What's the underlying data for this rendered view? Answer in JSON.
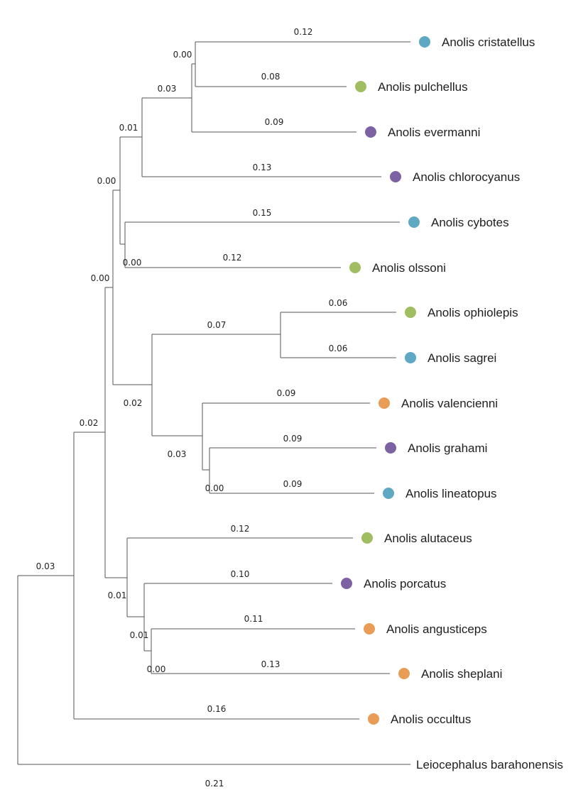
{
  "tree": {
    "taxa": [
      {
        "name": "Anolis cristatellus",
        "branch_length": "0.12",
        "color": "#5fa8c4"
      },
      {
        "name": "Anolis pulchellus",
        "branch_length": "0.08",
        "color": "#a0bd62"
      },
      {
        "name": "Anolis evermanni",
        "branch_length": "0.09",
        "color": "#7d62a3"
      },
      {
        "name": "Anolis chlorocyanus",
        "branch_length": "0.13",
        "color": "#7d62a3"
      },
      {
        "name": "Anolis cybotes",
        "branch_length": "0.15",
        "color": "#5fa8c4"
      },
      {
        "name": "Anolis olssoni",
        "branch_length": "0.12",
        "color": "#a0bd62"
      },
      {
        "name": "Anolis ophiolepis",
        "branch_length": "0.06",
        "color": "#a0bd62"
      },
      {
        "name": "Anolis sagrei",
        "branch_length": "0.06",
        "color": "#5fa8c4"
      },
      {
        "name": "Anolis valencienni",
        "branch_length": "0.09",
        "color": "#e89c56"
      },
      {
        "name": "Anolis grahami",
        "branch_length": "0.09",
        "color": "#7d62a3"
      },
      {
        "name": "Anolis lineatopus",
        "branch_length": "0.09",
        "color": "#5fa8c4"
      },
      {
        "name": "Anolis alutaceus",
        "branch_length": "0.12",
        "color": "#a0bd62"
      },
      {
        "name": "Anolis porcatus",
        "branch_length": "0.10",
        "color": "#7d62a3"
      },
      {
        "name": "Anolis angusticeps",
        "branch_length": "0.11",
        "color": "#e89c56"
      },
      {
        "name": "Anolis sheplani",
        "branch_length": "0.13",
        "color": "#e89c56"
      },
      {
        "name": "Anolis occultus",
        "branch_length": "0.16",
        "color": "#e89c56"
      },
      {
        "name": "Leiocephalus barahonensis",
        "branch_length": "0.21",
        "color": null
      }
    ],
    "internal_branches": [
      {
        "clade": "cristatellus+pulchellus",
        "branch_length": "0.00"
      },
      {
        "clade": "cristatellus+pulchellus+evermanni",
        "branch_length": "0.03"
      },
      {
        "clade": "cristatellus..chlorocyanus",
        "branch_length": "0.01"
      },
      {
        "clade": "cybotes+olssoni",
        "branch_length": "0.00"
      },
      {
        "clade": "cristatellus..olssoni",
        "branch_length": "0.00"
      },
      {
        "clade": "ophiolepis+sagrei",
        "branch_length": "0.07"
      },
      {
        "clade": "grahami+lineatopus",
        "branch_length": "0.00"
      },
      {
        "clade": "valencienni+grahami+lineatopus",
        "branch_length": "0.03"
      },
      {
        "clade": "ophiolepis..lineatopus",
        "branch_length": "0.02"
      },
      {
        "clade": "cristatellus..lineatopus",
        "branch_length": "0.00"
      },
      {
        "clade": "angusticeps+sheplani",
        "branch_length": "0.00"
      },
      {
        "clade": "porcatus+angusticeps+sheplani",
        "branch_length": "0.01"
      },
      {
        "clade": "alutaceus..sheplani",
        "branch_length": "0.01"
      },
      {
        "clade": "cristatellus..sheplani",
        "branch_length": "0.02"
      },
      {
        "clade": "Anolis",
        "branch_length": "0.03"
      }
    ]
  }
}
